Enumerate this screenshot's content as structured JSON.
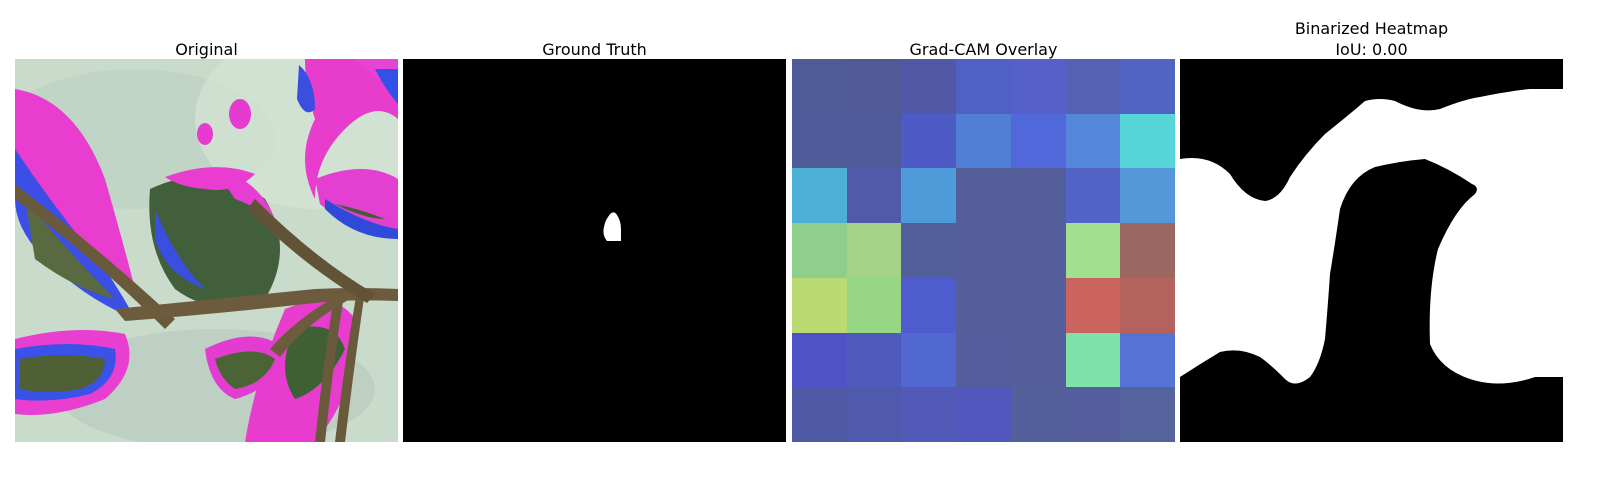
{
  "panels": [
    {
      "title": "Original"
    },
    {
      "title": "Ground Truth"
    },
    {
      "title": "Grad-CAM Overlay"
    },
    {
      "title": "Binarized Heatmap\nIoU: 0.00"
    }
  ],
  "gradcam_grid": [
    [
      "#4f5c98",
      "#4f5a96",
      "#5159a6",
      "#5160c4",
      "#5560c8",
      "#5462b3",
      "#5264c2"
    ],
    [
      "#4f5c9a",
      "#4f5b99",
      "#4e5ac6",
      "#527fd6",
      "#5168da",
      "#5487d9",
      "#58d5d9"
    ],
    [
      "#4dafd6",
      "#4f5aa9",
      "#4f9ad8",
      "#545f9a",
      "#545e98",
      "#5464c6",
      "#5498da"
    ],
    [
      "#8ecf8b",
      "#a5d387",
      "#51609b",
      "#545e9a",
      "#545e9b",
      "#a0e08e",
      "#9a6860"
    ],
    [
      "#b9db71",
      "#96d685",
      "#4f5ccd",
      "#545e9a",
      "#545f9b",
      "#cb645e",
      "#b3625d"
    ],
    [
      "#4f52c7",
      "#4f5bbc",
      "#5167d1",
      "#545e9c",
      "#545f9b",
      "#80e2ab",
      "#5473d4"
    ],
    [
      "#4f5aa6",
      "#505aad",
      "#515ab6",
      "#5157bd",
      "#54609b",
      "#545e9c",
      "#55639c"
    ]
  ]
}
